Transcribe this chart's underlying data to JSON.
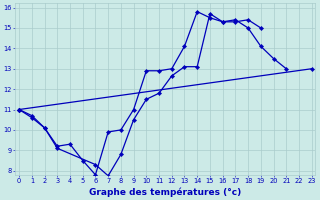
{
  "xlabel": "Graphe des températures (°c)",
  "background_color": "#cceae7",
  "line_color": "#0000bb",
  "grid_color": "#aacccc",
  "series1_x": [
    0,
    1,
    2,
    3,
    4,
    5,
    6,
    7,
    8,
    9,
    10,
    11,
    12,
    13,
    14,
    15,
    16,
    17,
    18,
    19,
    20,
    21
  ],
  "series1_y": [
    11.0,
    10.6,
    10.1,
    9.2,
    9.3,
    8.5,
    7.8,
    9.9,
    10.0,
    11.0,
    12.9,
    12.9,
    13.0,
    14.1,
    15.8,
    15.5,
    15.3,
    15.4,
    15.0,
    14.1,
    13.5,
    13.0
  ],
  "series2_x": [
    0,
    1,
    2,
    3,
    6,
    7,
    8,
    9,
    10,
    11,
    12,
    13,
    14,
    15,
    16,
    17,
    18,
    19
  ],
  "series2_y": [
    11.0,
    10.7,
    10.1,
    9.1,
    8.3,
    7.75,
    8.8,
    10.5,
    11.5,
    11.8,
    12.65,
    13.1,
    13.1,
    15.7,
    15.3,
    15.3,
    15.4,
    15.0
  ],
  "series3_x": [
    0,
    23
  ],
  "series3_y": [
    11.0,
    13.0
  ],
  "xlim": [
    -0.3,
    23.3
  ],
  "ylim": [
    7.8,
    16.2
  ],
  "yticks": [
    8,
    9,
    10,
    11,
    12,
    13,
    14,
    15,
    16
  ],
  "xticks": [
    0,
    1,
    2,
    3,
    4,
    5,
    6,
    7,
    8,
    9,
    10,
    11,
    12,
    13,
    14,
    15,
    16,
    17,
    18,
    19,
    20,
    21,
    22,
    23
  ],
  "xlabel_fontsize": 6.5,
  "tick_fontsize": 4.8,
  "linewidth": 0.9,
  "markersize": 2.2
}
